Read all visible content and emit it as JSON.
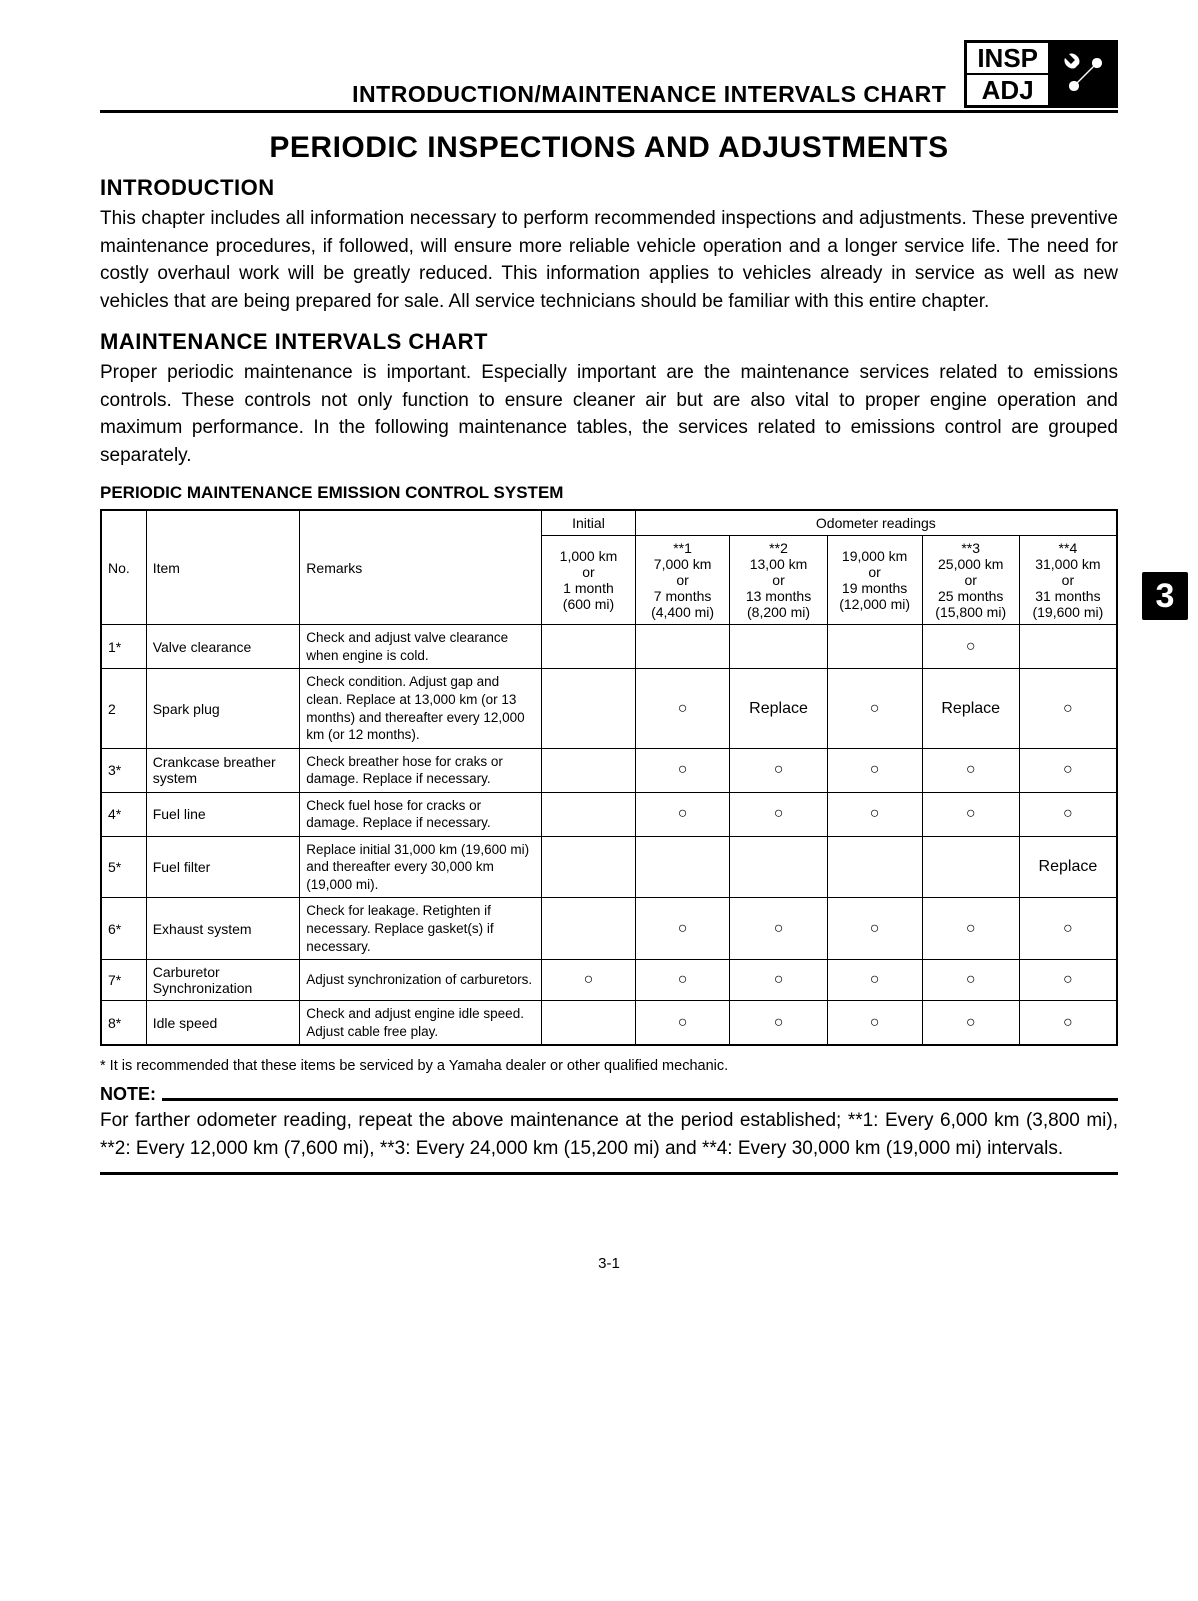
{
  "header": {
    "chart_title": "INTRODUCTION/MAINTENANCE INTERVALS CHART",
    "box_top": "INSP",
    "box_bottom": "ADJ"
  },
  "main_title": "PERIODIC INSPECTIONS AND ADJUSTMENTS",
  "intro": {
    "heading": "INTRODUCTION",
    "text": "This chapter includes all information necessary to perform recommended inspections and adjustments. These preventive maintenance procedures, if followed, will ensure more reliable vehicle operation and a longer service life. The need for costly overhaul work will be greatly reduced. This information applies to vehicles already in service as well as new vehicles that are being prepared for sale. All service technicians should be familiar with this entire chapter."
  },
  "chart": {
    "heading": "MAINTENANCE INTERVALS CHART",
    "text": "Proper periodic maintenance is important. Especially important are the maintenance services related to emissions controls. These controls not only function to ensure cleaner air but are also vital to proper engine operation and maximum performance. In the following maintenance tables, the services related to emissions control are grouped separately."
  },
  "table": {
    "title": "PERIODIC MAINTENANCE EMISSION CONTROL SYSTEM",
    "headers": {
      "no": "No.",
      "item": "Item",
      "remarks": "Remarks",
      "initial": "Initial",
      "odometer": "Odometer readings",
      "initial_sub": "1,000 km\nor\n1 month\n(600 mi)",
      "c1": "**1\n7,000 km\nor\n7 months\n(4,400 mi)",
      "c2": "**2\n13,00 km\nor\n13 months\n(8,200 mi)",
      "c3": "19,000 km\nor\n19 months\n(12,000 mi)",
      "c4": "**3\n25,000 km\nor\n25 months\n(15,800 mi)",
      "c5": "**4\n31,000 km\nor\n31 months\n(19,600 mi)"
    },
    "rows": [
      {
        "no": "1*",
        "item": "Valve clearance",
        "remarks": "Check and adjust valve clearance when engine is cold.",
        "v": [
          "",
          "",
          "",
          "",
          "○",
          ""
        ]
      },
      {
        "no": "2",
        "item": "Spark plug",
        "remarks": "Check condition. Adjust gap and clean. Replace at 13,000 km (or 13 months) and thereafter every 12,000 km (or 12 months).",
        "v": [
          "",
          "○",
          "Replace",
          "○",
          "Replace",
          "○"
        ]
      },
      {
        "no": "3*",
        "item": "Crankcase breather system",
        "remarks": "Check breather hose for craks or damage. Replace if necessary.",
        "v": [
          "",
          "○",
          "○",
          "○",
          "○",
          "○"
        ]
      },
      {
        "no": "4*",
        "item": "Fuel line",
        "remarks": "Check fuel hose for cracks or damage. Replace if necessary.",
        "v": [
          "",
          "○",
          "○",
          "○",
          "○",
          "○"
        ]
      },
      {
        "no": "5*",
        "item": "Fuel filter",
        "remarks": "Replace initial 31,000 km (19,600 mi) and thereafter every 30,000 km (19,000 mi).",
        "v": [
          "",
          "",
          "",
          "",
          "",
          "Replace"
        ]
      },
      {
        "no": "6*",
        "item": "Exhaust system",
        "remarks": "Check for leakage. Retighten if necessary. Replace gasket(s) if necessary.",
        "v": [
          "",
          "○",
          "○",
          "○",
          "○",
          "○"
        ]
      },
      {
        "no": "7*",
        "item": "Carburetor Synchronization",
        "remarks": "Adjust synchronization of carburetors.",
        "v": [
          "○",
          "○",
          "○",
          "○",
          "○",
          "○"
        ]
      },
      {
        "no": "8*",
        "item": "Idle speed",
        "remarks": "Check and adjust engine idle speed. Adjust cable free play.",
        "v": [
          "",
          "○",
          "○",
          "○",
          "○",
          "○"
        ]
      }
    ]
  },
  "footnote": "* It is recommended that these items be serviced by a Yamaha dealer or other qualified mechanic.",
  "note": {
    "label": "NOTE:",
    "text": "For farther odometer reading, repeat the above maintenance at the period established; **1: Every 6,000 km (3,800 mi), **2: Every 12,000 km (7,600 mi), **3: Every 24,000 km (15,200 mi) and **4: Every 30,000 km (19,000 mi) intervals."
  },
  "side_tab": "3",
  "page_number": "3-1",
  "circle_glyph": "○"
}
